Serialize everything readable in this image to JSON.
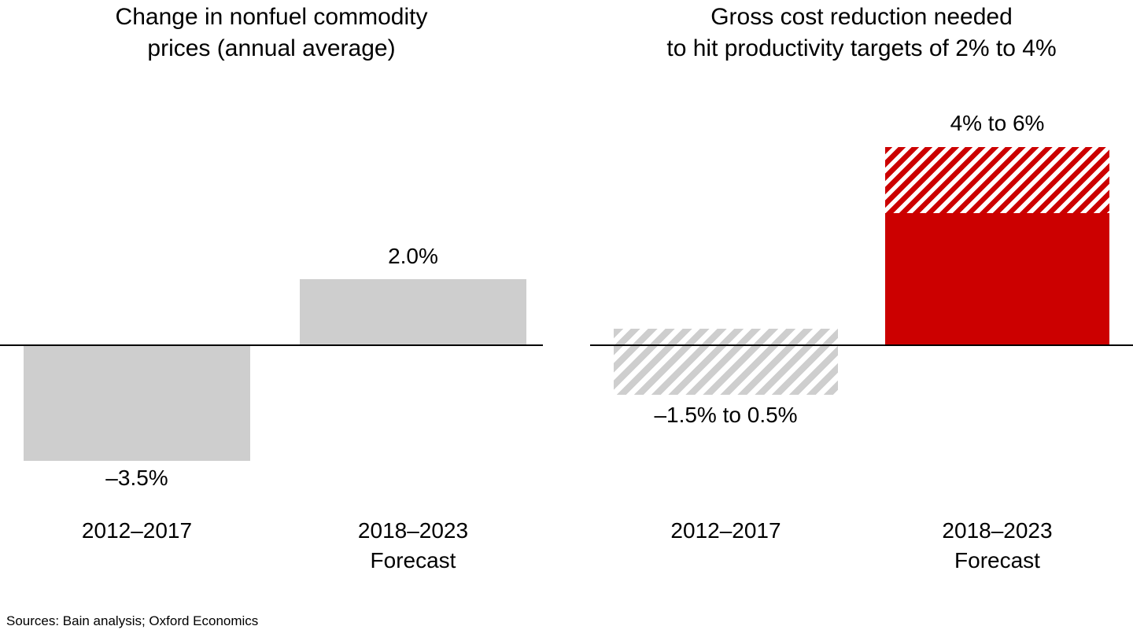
{
  "figure": {
    "source_note": "Sources: Bain analysis; Oxford Economics",
    "colors": {
      "bar_gray": "#CECECE",
      "bain_red": "#CC0000",
      "axis": "#000000",
      "text": "#000000",
      "background": "#FFFFFF"
    }
  },
  "chart_data": [
    {
      "type": "bar",
      "title": "Change in nonfuel commodity\nprices (annual average)",
      "categories": [
        "2012–2017",
        "2018–2023\nForecast"
      ],
      "values": [
        -3.5,
        2.0
      ],
      "value_labels": [
        "–3.5%",
        "2.0%"
      ],
      "unit": "% (annual average change)",
      "xlabel": "",
      "ylabel": "",
      "ylim": [
        -4.5,
        7
      ],
      "gridlines": false,
      "legend": "none",
      "bars": [
        {
          "category": "2012–2017",
          "label": "–3.5%",
          "segments": [
            {
              "from": -3.5,
              "to": 0,
              "fill": "solid",
              "color": "#CECECE"
            }
          ]
        },
        {
          "category": "2018–2023\nForecast",
          "label": "2.0%",
          "segments": [
            {
              "from": 0,
              "to": 2.0,
              "fill": "solid",
              "color": "#CECECE"
            }
          ]
        }
      ]
    },
    {
      "type": "bar",
      "title": "Gross cost reduction needed\nto hit productivity targets of 2% to 4%",
      "categories": [
        "2012–2017",
        "2018–2023\nForecast"
      ],
      "value_ranges": [
        [
          -1.5,
          0.5
        ],
        [
          4,
          6
        ]
      ],
      "value_labels": [
        "–1.5% to 0.5%",
        "4% to 6%"
      ],
      "unit": "% gross cost reduction",
      "xlabel": "",
      "ylabel": "",
      "ylim": [
        -4.5,
        7
      ],
      "gridlines": false,
      "legend": "none",
      "bars": [
        {
          "category": "2012–2017",
          "label": "–1.5% to 0.5%",
          "segments": [
            {
              "from": -1.5,
              "to": 0.5,
              "fill": "hatch",
              "color": "#CECECE"
            }
          ]
        },
        {
          "category": "2018–2023\nForecast",
          "label": "4% to 6%",
          "segments": [
            {
              "from": 0,
              "to": 4,
              "fill": "solid",
              "color": "#CC0000"
            },
            {
              "from": 4,
              "to": 6,
              "fill": "hatch",
              "color": "#CC0000"
            }
          ]
        }
      ]
    }
  ]
}
